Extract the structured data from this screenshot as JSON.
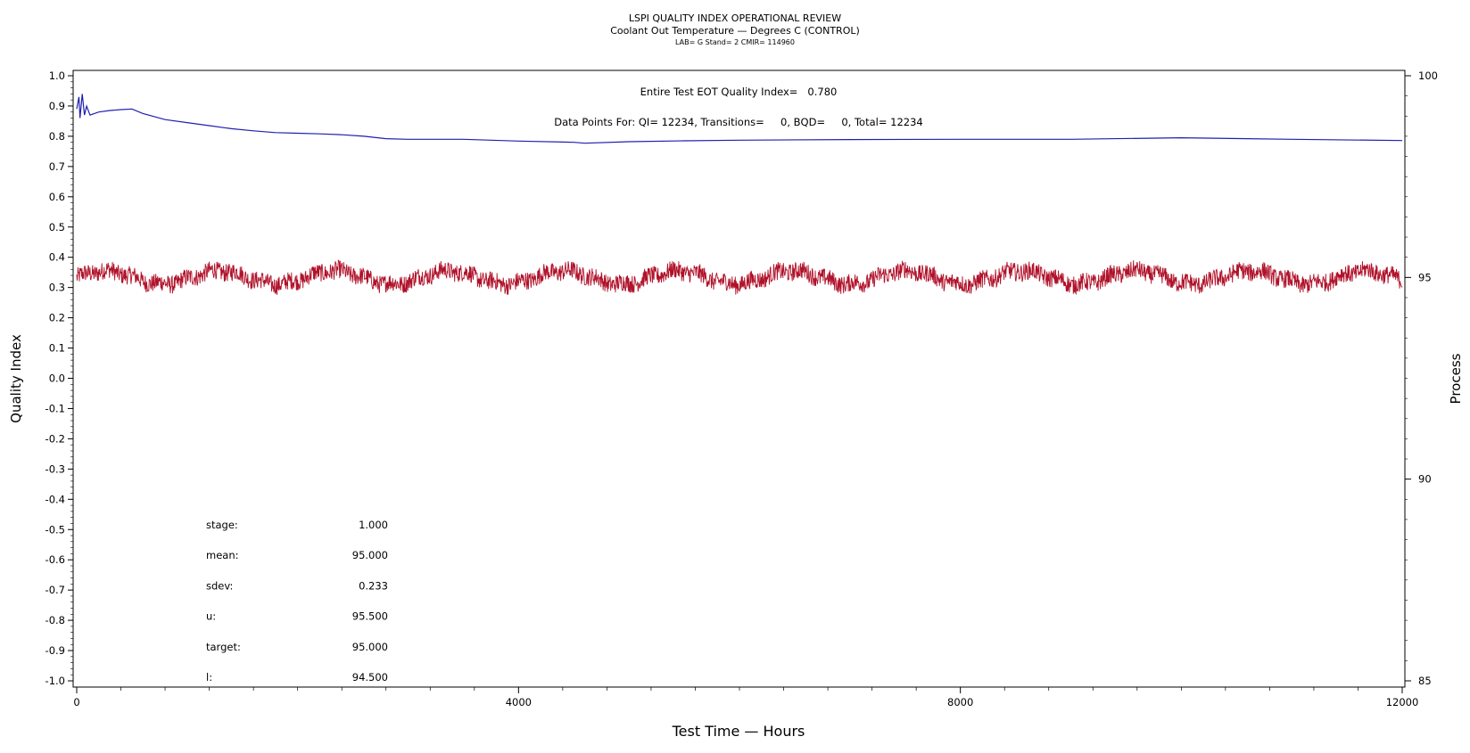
{
  "chart_data": {
    "type": "line",
    "title": "LSPI QUALITY INDEX OPERATIONAL REVIEW",
    "subtitle": "Coolant Out Temperature — Degrees C (CONTROL)",
    "subtitle2": "LAB= G Stand= 2 CMIR= 114960",
    "xlabel": "Test Time — Hours",
    "ylabel": "Quality Index",
    "y2label": "Process",
    "xlim": [
      0,
      12000
    ],
    "ylim": [
      -1.0,
      1.0
    ],
    "y2lim": [
      85,
      100
    ],
    "x_ticks": [
      0,
      4000,
      8000,
      12000
    ],
    "y_ticks": [
      "1.0",
      "0.9",
      "0.8",
      "0.7",
      "0.6",
      "0.5",
      "0.4",
      "0.3",
      "0.2",
      "0.1",
      "0.0",
      "-0.1",
      "-0.2",
      "-0.3",
      "-0.4",
      "-0.5",
      "-0.6",
      "-0.7",
      "-0.8",
      "-0.9",
      "-1.0"
    ],
    "y2_ticks": [
      100,
      95,
      90,
      85
    ],
    "annotations": {
      "quality_index": "Entire Test EOT Quality Index=   0.780",
      "data_points": "Data Points For: QI= 12234, Transitions=     0, BQD=     0, Total= 12234"
    },
    "stats": [
      {
        "label": "stage:",
        "value": "1.000"
      },
      {
        "label": "mean:",
        "value": "95.000"
      },
      {
        "label": "sdev:",
        "value": "0.233"
      },
      {
        "label": "u:",
        "value": "95.500"
      },
      {
        "label": "target:",
        "value": "95.000"
      },
      {
        "label": "l:",
        "value": "94.500"
      }
    ],
    "series": [
      {
        "color": "#1f1fb0",
        "axis": "left",
        "x": [
          0,
          20,
          30,
          50,
          70,
          90,
          120,
          200,
          300,
          400,
          500,
          600,
          700,
          800,
          1000,
          1200,
          1400,
          1600,
          1800,
          2000,
          2200,
          2400,
          2600,
          2800,
          3000,
          3500,
          4000,
          4500,
          4600,
          5000,
          5500,
          6000,
          7000,
          8000,
          9000,
          10000,
          11000,
          12000
        ],
        "values": [
          0.89,
          0.93,
          0.86,
          0.94,
          0.87,
          0.9,
          0.87,
          0.88,
          0.885,
          0.888,
          0.89,
          0.875,
          0.865,
          0.855,
          0.845,
          0.835,
          0.825,
          0.818,
          0.812,
          0.81,
          0.808,
          0.805,
          0.8,
          0.792,
          0.79,
          0.79,
          0.784,
          0.78,
          0.777,
          0.782,
          0.785,
          0.787,
          0.789,
          0.79,
          0.79,
          0.795,
          0.79,
          0.786
        ]
      },
      {
        "color": "#b0122a",
        "axis": "right",
        "mean": 95.0,
        "sdev": 0.233,
        "range": [
          94.2,
          95.6
        ],
        "n_points": 12234
      }
    ]
  }
}
